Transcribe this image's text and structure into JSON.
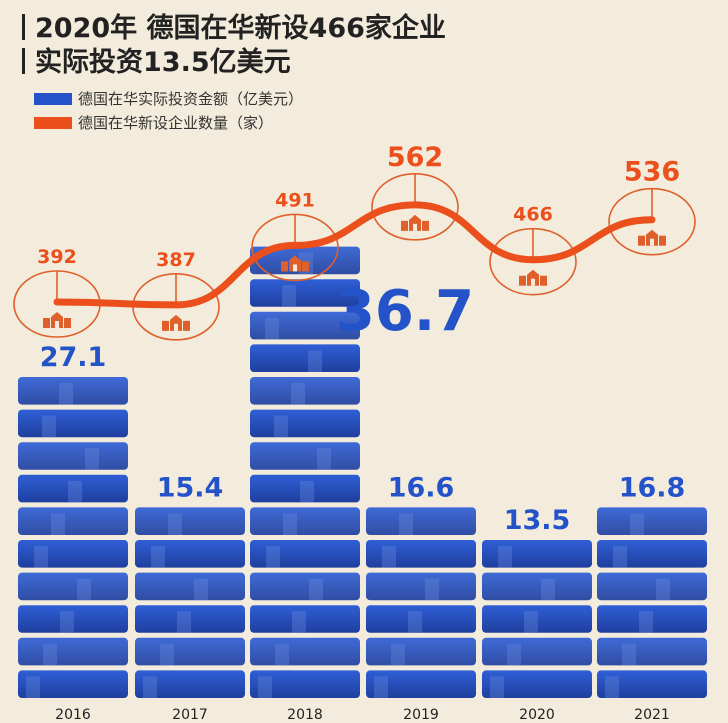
{
  "title_line1": "2020年 德国在华新设466家企业",
  "title_line2": "实际投资13.5亿美元",
  "chart_data": {
    "type": "bar+line",
    "categories": [
      "2016",
      "2017",
      "2018",
      "2019",
      "2020",
      "2021"
    ],
    "series": [
      {
        "name": "德国在华实际投资金额（亿美元）",
        "type": "bar",
        "color": "#2453c9",
        "values": [
          27.1,
          15.4,
          36.7,
          16.6,
          13.5,
          16.8
        ],
        "labels": [
          "27.1",
          "15.4",
          "36.7",
          "16.6",
          "13.5",
          "16.8"
        ]
      },
      {
        "name": "德国在华新设企业数量（家）",
        "type": "line",
        "color": "#ea4f1c",
        "values": [
          392,
          387,
          491,
          562,
          466,
          536
        ],
        "labels": [
          "392",
          "387",
          "491",
          "562",
          "466",
          "536"
        ]
      }
    ],
    "grid": false,
    "legend": "top-left",
    "icon": "building-icon"
  }
}
